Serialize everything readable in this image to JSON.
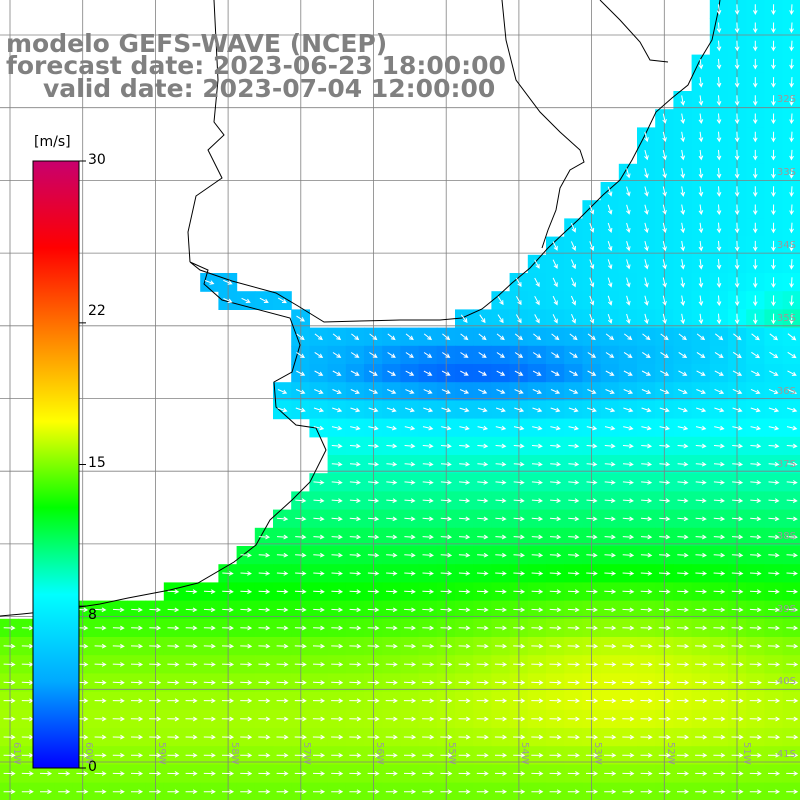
{
  "header": {
    "model_line": "modelo GEFS-WAVE (NCEP)",
    "forecast_line": "forecast date: 2023-06-23 18:00:00",
    "valid_line": "valid date: 2023-07-04 12:00:00"
  },
  "colorbar": {
    "unit": "[m/s]",
    "ticks": [
      "30",
      "22",
      "15",
      "8",
      "0"
    ],
    "tick_values": [
      30,
      22,
      15,
      8,
      0
    ],
    "range": [
      0,
      30
    ],
    "colors": [
      "#0000ff",
      "#00aaff",
      "#00ffff",
      "#00ff00",
      "#ffff00",
      "#ff8000",
      "#ff0000",
      "#c8006e"
    ]
  },
  "map": {
    "lat_labels": [
      "32S",
      "33S",
      "34S",
      "35S",
      "36S",
      "37S",
      "38S",
      "39S",
      "40S",
      "41S"
    ],
    "lon_labels": [
      "61W",
      "60W",
      "59W",
      "58W",
      "57W",
      "56W",
      "55W",
      "54W",
      "53W",
      "52W",
      "51W"
    ],
    "arrow_color": "#ffffff",
    "grid_color": "#808080",
    "land_color": "#ffffff",
    "coast_color": "#000000"
  }
}
